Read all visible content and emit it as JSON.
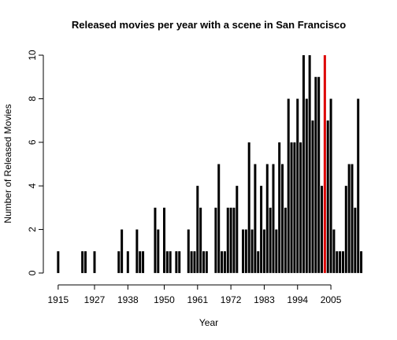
{
  "chart_data": {
    "type": "histogram-lines",
    "title": "Released movies per year with a scene in San Francisco",
    "x_label": "Year",
    "y_label": "Number of Released Movies",
    "x": [
      1915,
      1923,
      1924,
      1927,
      1935,
      1936,
      1938,
      1941,
      1942,
      1943,
      1947,
      1948,
      1950,
      1951,
      1952,
      1954,
      1955,
      1958,
      1959,
      1960,
      1961,
      1962,
      1963,
      1964,
      1967,
      1968,
      1969,
      1970,
      1971,
      1972,
      1973,
      1974,
      1976,
      1977,
      1978,
      1979,
      1980,
      1981,
      1982,
      1983,
      1984,
      1985,
      1986,
      1987,
      1988,
      1989,
      1990,
      1991,
      1992,
      1993,
      1994,
      1995,
      1996,
      1997,
      1998,
      1999,
      2000,
      2001,
      2002,
      2003,
      2004,
      2005,
      2006,
      2007,
      2008,
      2009,
      2010,
      2011,
      2012,
      2013,
      2014,
      2015
    ],
    "values": [
      1,
      1,
      1,
      1,
      1,
      2,
      1,
      2,
      1,
      1,
      3,
      2,
      3,
      1,
      1,
      1,
      1,
      2,
      1,
      1,
      4,
      3,
      1,
      1,
      3,
      5,
      1,
      1,
      3,
      3,
      3,
      4,
      2,
      2,
      6,
      2,
      5,
      1,
      4,
      2,
      5,
      3,
      5,
      2,
      6,
      5,
      3,
      8,
      6,
      6,
      8,
      6,
      10,
      8,
      10,
      7,
      9,
      9,
      4,
      10,
      7,
      8,
      2,
      1,
      1,
      1,
      4,
      5,
      5,
      3,
      8,
      1
    ],
    "color": "#000000",
    "colors": [
      "#000000",
      "#000000",
      "#000000",
      "#000000",
      "#000000",
      "#000000",
      "#000000",
      "#000000",
      "#000000",
      "#000000",
      "#000000",
      "#000000",
      "#000000",
      "#000000",
      "#000000",
      "#000000",
      "#000000",
      "#000000",
      "#000000",
      "#000000",
      "#000000",
      "#000000",
      "#000000",
      "#000000",
      "#000000",
      "#000000",
      "#000000",
      "#000000",
      "#000000",
      "#000000",
      "#000000",
      "#000000",
      "#000000",
      "#000000",
      "#000000",
      "#000000",
      "#000000",
      "#000000",
      "#000000",
      "#000000",
      "#000000",
      "#000000",
      "#000000",
      "#000000",
      "#000000",
      "#000000",
      "#000000",
      "#000000",
      "#000000",
      "#000000",
      "#000000",
      "#000000",
      "#000000",
      "#000000",
      "#000000",
      "#000000",
      "#000000",
      "#000000",
      "#000000",
      "#dd0000",
      "#000000",
      "#000000",
      "#000000",
      "#000000",
      "#000000",
      "#000000",
      "#000000",
      "#000000",
      "#000000",
      "#000000",
      "#000000",
      "#000000"
    ],
    "xlim": [
      1911.4,
      2018.5
    ],
    "ylim": [
      -0.4,
      10.4
    ],
    "xticks": [
      1915,
      1927,
      1938,
      1950,
      1961,
      1972,
      1983,
      1994,
      2005
    ],
    "yticks": [
      0,
      2,
      4,
      6,
      8,
      10
    ]
  }
}
